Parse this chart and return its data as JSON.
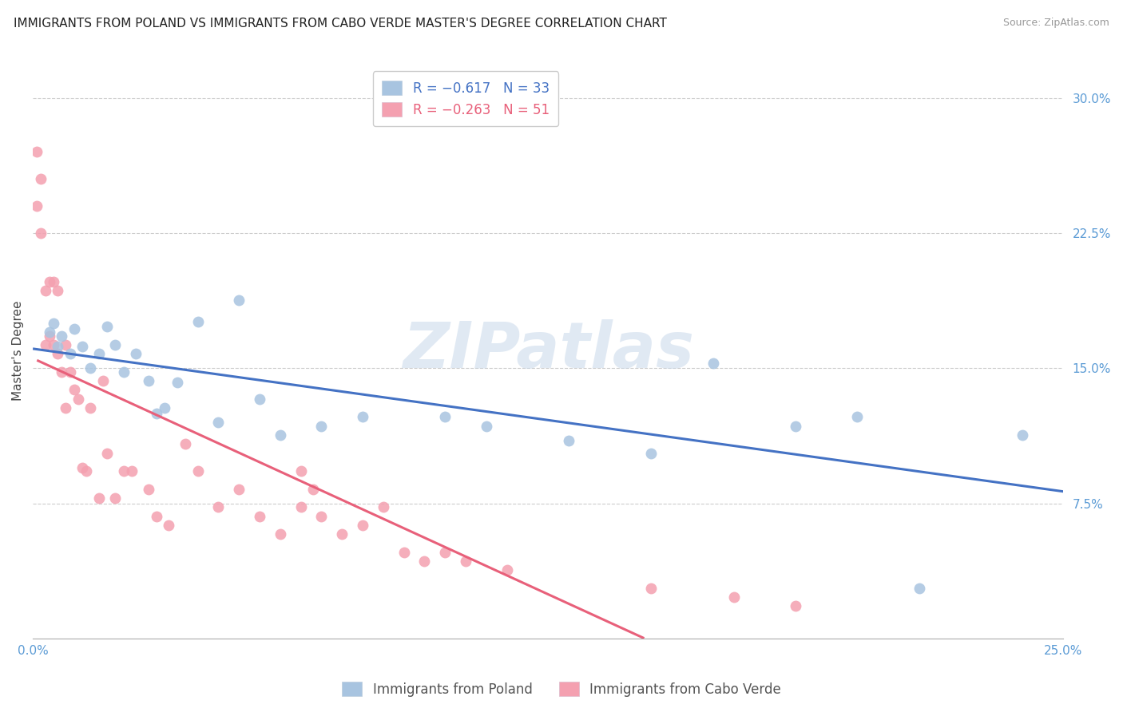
{
  "title": "IMMIGRANTS FROM POLAND VS IMMIGRANTS FROM CABO VERDE MASTER'S DEGREE CORRELATION CHART",
  "source": "Source: ZipAtlas.com",
  "ylabel": "Master's Degree",
  "ytick_labels": [
    "30.0%",
    "22.5%",
    "15.0%",
    "7.5%"
  ],
  "ytick_values": [
    0.3,
    0.225,
    0.15,
    0.075
  ],
  "xlim": [
    0.0,
    0.25
  ],
  "ylim": [
    0.0,
    0.32
  ],
  "legend_poland": "R = −0.617   N = 33",
  "legend_cabo": "R = −0.263   N = 51",
  "watermark": "ZIPatlas",
  "poland_scatter_x": [
    0.004,
    0.005,
    0.006,
    0.007,
    0.009,
    0.01,
    0.012,
    0.014,
    0.016,
    0.018,
    0.02,
    0.022,
    0.025,
    0.028,
    0.03,
    0.032,
    0.035,
    0.04,
    0.045,
    0.05,
    0.055,
    0.06,
    0.07,
    0.08,
    0.1,
    0.11,
    0.13,
    0.15,
    0.165,
    0.185,
    0.2,
    0.215,
    0.24
  ],
  "poland_scatter_y": [
    0.17,
    0.175,
    0.162,
    0.168,
    0.158,
    0.172,
    0.162,
    0.15,
    0.158,
    0.173,
    0.163,
    0.148,
    0.158,
    0.143,
    0.125,
    0.128,
    0.142,
    0.176,
    0.12,
    0.188,
    0.133,
    0.113,
    0.118,
    0.123,
    0.123,
    0.118,
    0.11,
    0.103,
    0.153,
    0.118,
    0.123,
    0.028,
    0.113
  ],
  "cabo_scatter_x": [
    0.001,
    0.001,
    0.002,
    0.002,
    0.003,
    0.003,
    0.004,
    0.004,
    0.005,
    0.005,
    0.006,
    0.006,
    0.007,
    0.008,
    0.008,
    0.009,
    0.01,
    0.011,
    0.012,
    0.013,
    0.014,
    0.016,
    0.017,
    0.018,
    0.02,
    0.022,
    0.024,
    0.028,
    0.03,
    0.033,
    0.037,
    0.04,
    0.045,
    0.05,
    0.055,
    0.06,
    0.065,
    0.065,
    0.068,
    0.07,
    0.075,
    0.08,
    0.085,
    0.09,
    0.095,
    0.1,
    0.105,
    0.115,
    0.15,
    0.17,
    0.185
  ],
  "cabo_scatter_y": [
    0.27,
    0.24,
    0.255,
    0.225,
    0.193,
    0.163,
    0.198,
    0.168,
    0.198,
    0.163,
    0.158,
    0.193,
    0.148,
    0.128,
    0.163,
    0.148,
    0.138,
    0.133,
    0.095,
    0.093,
    0.128,
    0.078,
    0.143,
    0.103,
    0.078,
    0.093,
    0.093,
    0.083,
    0.068,
    0.063,
    0.108,
    0.093,
    0.073,
    0.083,
    0.068,
    0.058,
    0.093,
    0.073,
    0.083,
    0.068,
    0.058,
    0.063,
    0.073,
    0.048,
    0.043,
    0.048,
    0.043,
    0.038,
    0.028,
    0.023,
    0.018
  ],
  "poland_line_color": "#4472c4",
  "cabo_line_color": "#e8607a",
  "poland_marker_color": "#a8c4e0",
  "cabo_marker_color": "#f4a0b0",
  "background_color": "#ffffff",
  "grid_color": "#cccccc",
  "right_axis_color": "#5b9bd5",
  "title_fontsize": 11,
  "axis_label_fontsize": 11,
  "tick_fontsize": 11,
  "marker_size": 100
}
